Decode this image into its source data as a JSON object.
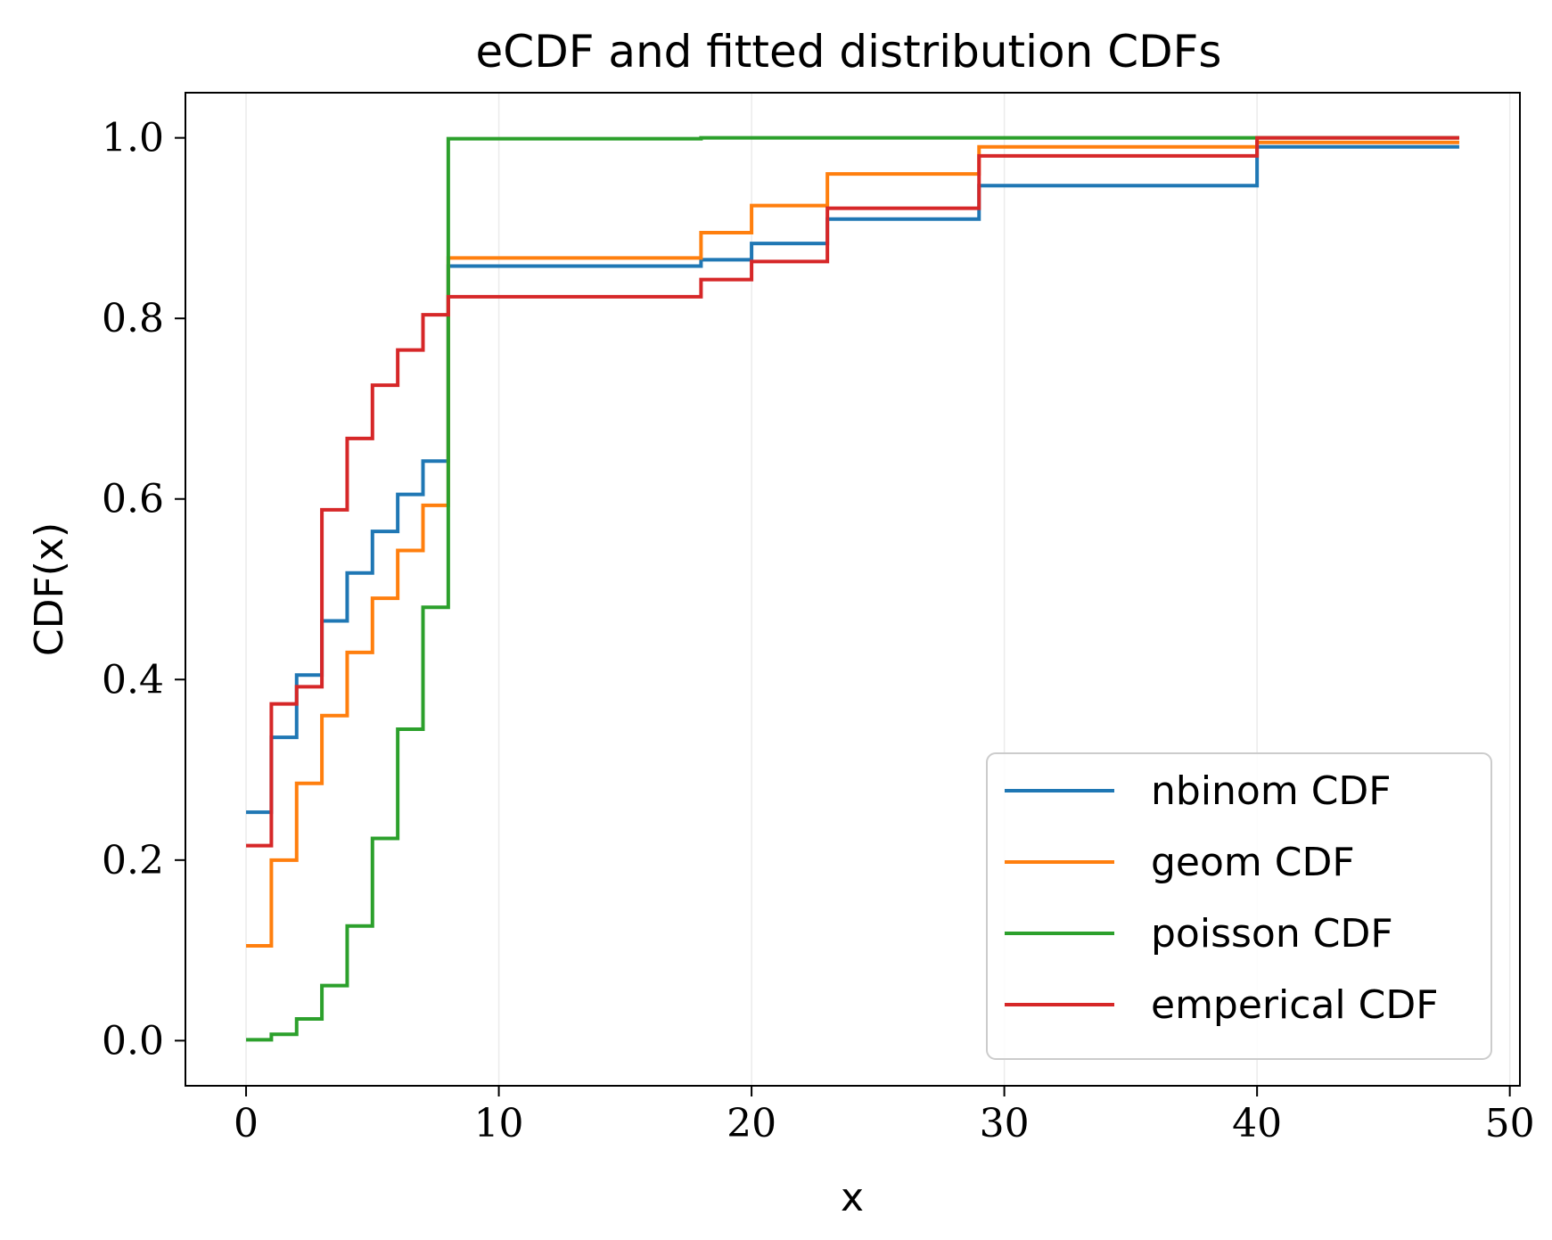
{
  "chart_data": {
    "type": "line",
    "title": "eCDF and fitted distribution CDFs",
    "xlabel": "x",
    "ylabel": "CDF(x)",
    "xlim": [
      -2.4,
      50.4
    ],
    "ylim": [
      -0.05,
      1.05
    ],
    "xticks": [
      0,
      10,
      20,
      30,
      40,
      50
    ],
    "xtick_labels": [
      "0",
      "10",
      "20",
      "30",
      "40",
      "50"
    ],
    "yticks": [
      0.0,
      0.2,
      0.4,
      0.6,
      0.8,
      1.0
    ],
    "ytick_labels": [
      "0.0",
      "0.2",
      "0.4",
      "0.6",
      "0.8",
      "1.0"
    ],
    "grid": "vertical",
    "legend_position": "lower-right",
    "series": [
      {
        "name": "nbinom CDF",
        "color": "#1f77b4",
        "step": "post",
        "x": [
          0,
          1,
          2,
          3,
          4,
          5,
          6,
          7,
          8,
          18,
          20,
          23,
          29,
          40,
          48
        ],
        "y": [
          0.253,
          0.336,
          0.405,
          0.465,
          0.518,
          0.564,
          0.605,
          0.642,
          0.858,
          0.865,
          0.883,
          0.91,
          0.947,
          0.99,
          0.99
        ]
      },
      {
        "name": "geom CDF",
        "color": "#ff7f0e",
        "step": "post",
        "x": [
          0,
          1,
          2,
          3,
          4,
          5,
          6,
          7,
          8,
          18,
          20,
          23,
          29,
          40,
          48
        ],
        "y": [
          0.105,
          0.2,
          0.285,
          0.36,
          0.43,
          0.49,
          0.543,
          0.593,
          0.867,
          0.895,
          0.925,
          0.96,
          0.99,
          0.995,
          0.995
        ]
      },
      {
        "name": "poisson CDF",
        "color": "#2ca02c",
        "step": "post",
        "x": [
          0,
          1,
          2,
          3,
          4,
          5,
          6,
          7,
          8,
          18,
          20,
          23,
          29,
          40,
          48
        ],
        "y": [
          0.001,
          0.007,
          0.024,
          0.061,
          0.127,
          0.224,
          0.345,
          0.48,
          0.999,
          1.0,
          1.0,
          1.0,
          1.0,
          1.0,
          1.0
        ]
      },
      {
        "name": "emperical CDF",
        "color": "#d62728",
        "step": "post",
        "x": [
          0,
          1,
          2,
          3,
          4,
          5,
          6,
          7,
          8,
          18,
          20,
          23,
          29,
          40,
          48
        ],
        "y": [
          0.216,
          0.373,
          0.392,
          0.588,
          0.667,
          0.726,
          0.765,
          0.804,
          0.824,
          0.843,
          0.863,
          0.922,
          0.98,
          1.0,
          1.0
        ]
      }
    ]
  }
}
